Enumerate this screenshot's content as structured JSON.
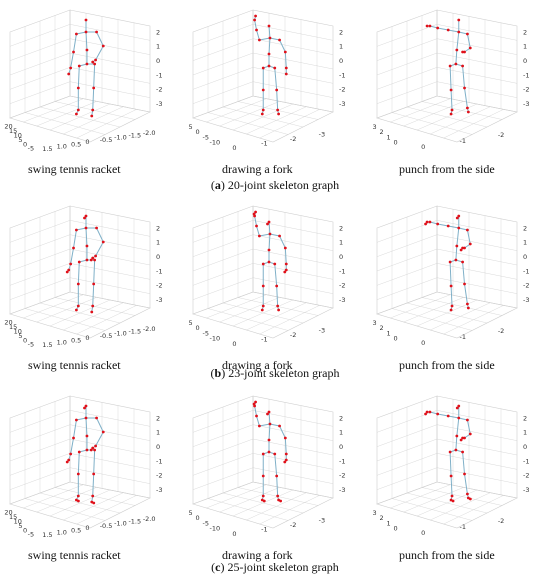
{
  "rows": [
    {
      "caption_letter": "a",
      "caption_text": "20-joint skeleton graph",
      "panels": [
        {
          "label": "swing tennis racket",
          "axis_set": "A",
          "pose": "tennis",
          "joints": 20
        },
        {
          "label": "drawing a fork",
          "axis_set": "B",
          "pose": "fork",
          "joints": 20
        },
        {
          "label": "punch from the side",
          "axis_set": "C",
          "pose": "punch",
          "joints": 20
        }
      ]
    },
    {
      "caption_letter": "b",
      "caption_text": "23-joint skeleton graph",
      "panels": [
        {
          "label": "swing tennis racket",
          "axis_set": "A",
          "pose": "tennis",
          "joints": 23
        },
        {
          "label": "drawing a fork",
          "axis_set": "B",
          "pose": "fork",
          "joints": 23
        },
        {
          "label": "punch from the side",
          "axis_set": "C",
          "pose": "punch",
          "joints": 23
        }
      ]
    },
    {
      "caption_letter": "c",
      "caption_text": "25-joint skeleton graph",
      "panels": [
        {
          "label": "swing tennis racket",
          "axis_set": "A",
          "pose": "tennis",
          "joints": 25
        },
        {
          "label": "drawing a fork",
          "axis_set": "B",
          "pose": "fork",
          "joints": 25
        },
        {
          "label": "punch from the side",
          "axis_set": "C",
          "pose": "punch",
          "joints": 25
        }
      ]
    }
  ],
  "axis_sets": {
    "A": {
      "z_ticks": [
        "2",
        "1",
        "0",
        "-1",
        "-2",
        "-3"
      ],
      "left_ticks": [
        "20",
        "15",
        "10",
        "5",
        "0",
        "-5"
      ],
      "bottom_ticks": [
        "1.5",
        "1.0",
        "0.5",
        "0",
        "-0.5",
        "-1.0",
        "-1.5",
        "-2.0"
      ]
    },
    "B": {
      "z_ticks": [
        "2",
        "1",
        "0",
        "-1",
        "-2",
        "-3"
      ],
      "left_ticks": [
        "5",
        "0",
        "-5",
        "-10"
      ],
      "bottom_ticks": [
        "0",
        "-1",
        "-2",
        "-3"
      ]
    },
    "C": {
      "z_ticks": [
        "2",
        "1",
        "0",
        "-1",
        "-2",
        "-3"
      ],
      "left_ticks": [
        "3",
        "2",
        "1",
        "0"
      ],
      "bottom_ticks": [
        "0",
        "-1",
        "-2"
      ]
    }
  },
  "colors": {
    "bone": "#7fb0c8",
    "joint": "#e0101a",
    "grid": "#cfcfcf",
    "axis": "#9a9a9a"
  }
}
